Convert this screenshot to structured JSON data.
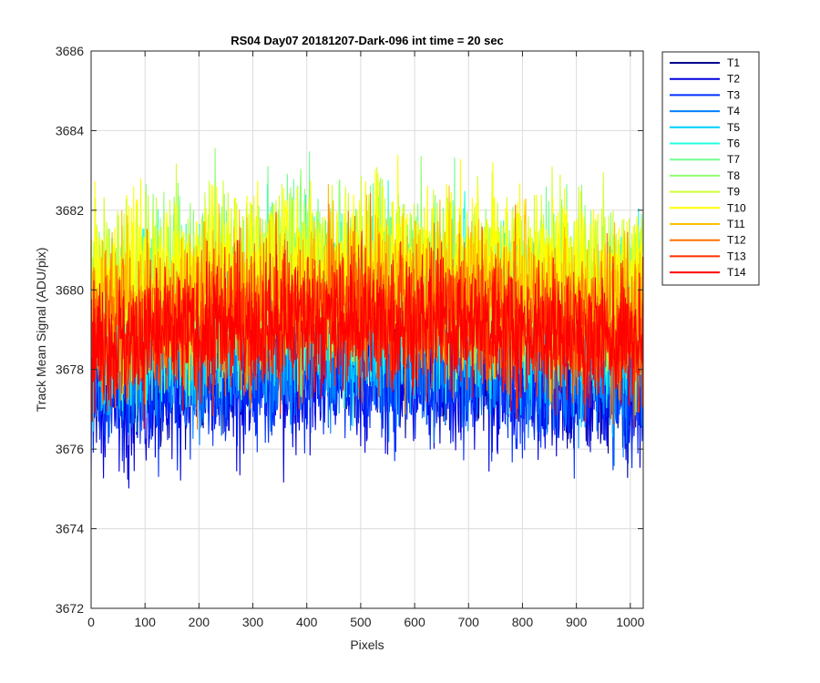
{
  "chart_data": {
    "type": "line",
    "title": "RS04 Day07 20181207-Dark-096 int time = 20 sec",
    "xlabel": "Pixels",
    "ylabel": "Track Mean Signal (ADU/pix)",
    "xlim": [
      0,
      1024
    ],
    "ylim": [
      3672,
      3686
    ],
    "xticks": [
      0,
      100,
      200,
      300,
      400,
      500,
      600,
      700,
      800,
      900,
      1000
    ],
    "yticks": [
      3672,
      3674,
      3676,
      3678,
      3680,
      3682,
      3684,
      3686
    ],
    "grid": true,
    "legend_position": "outside-top-right",
    "series": [
      {
        "name": "T1",
        "color": "#00008f",
        "mean": 3677.9,
        "spread": 0.75
      },
      {
        "name": "T2",
        "color": "#0000df",
        "mean": 3677.5,
        "spread": 0.85
      },
      {
        "name": "T3",
        "color": "#0030ff",
        "mean": 3677.6,
        "spread": 0.8
      },
      {
        "name": "T4",
        "color": "#0080ff",
        "mean": 3678.2,
        "spread": 0.9
      },
      {
        "name": "T5",
        "color": "#00cfff",
        "mean": 3679.0,
        "spread": 1.0
      },
      {
        "name": "T6",
        "color": "#20ffdf",
        "mean": 3679.6,
        "spread": 1.05
      },
      {
        "name": "T7",
        "color": "#70ff8f",
        "mean": 3679.9,
        "spread": 1.05
      },
      {
        "name": "T8",
        "color": "#8fff70",
        "mean": 3680.1,
        "spread": 1.05
      },
      {
        "name": "T9",
        "color": "#cfff30",
        "mean": 3680.3,
        "spread": 1.05
      },
      {
        "name": "T10",
        "color": "#ffff00",
        "mean": 3680.4,
        "spread": 1.05
      },
      {
        "name": "T11",
        "color": "#ffbf00",
        "mean": 3679.8,
        "spread": 0.95
      },
      {
        "name": "T12",
        "color": "#ff7000",
        "mean": 3679.3,
        "spread": 0.9
      },
      {
        "name": "T13",
        "color": "#ff3000",
        "mean": 3679.0,
        "spread": 0.85
      },
      {
        "name": "T14",
        "color": "#ff0000",
        "mean": 3678.9,
        "spread": 0.8
      }
    ]
  }
}
